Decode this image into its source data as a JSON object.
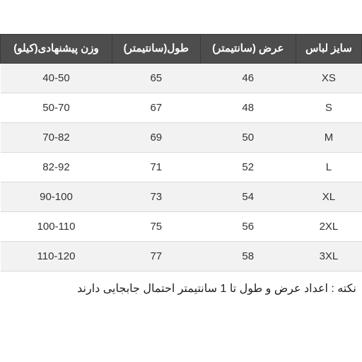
{
  "table": {
    "type": "table",
    "direction": "rtl",
    "header_bg": "#4d4d4d",
    "header_fg": "#ffffff",
    "row_even_bg": "#f2f2f2",
    "row_odd_bg": "#ffffff",
    "border_color": "#d9d9d9",
    "header_fontsize": 15,
    "cell_fontsize": 15,
    "columns": [
      {
        "label": "سایز لباس"
      },
      {
        "label": "عرض (سانتیمتر)"
      },
      {
        "label": "طول(سانتیمتر)"
      },
      {
        "label": "وزن پیشنهادی(کیلو)"
      }
    ],
    "rows": [
      {
        "size": "XS",
        "width": "46",
        "length": "65",
        "weight": "40-50"
      },
      {
        "size": "S",
        "width": "48",
        "length": "67",
        "weight": "50-70"
      },
      {
        "size": "M",
        "width": "50",
        "length": "69",
        "weight": "70-82"
      },
      {
        "size": "L",
        "width": "52",
        "length": "71",
        "weight": "82-92"
      },
      {
        "size": "XL",
        "width": "54",
        "length": "73",
        "weight": "90-100"
      },
      {
        "size": "2XL",
        "width": "56",
        "length": "75",
        "weight": "100-110"
      },
      {
        "size": "3XL",
        "width": "58",
        "length": "77",
        "weight": "110-120"
      }
    ]
  },
  "note": "نکته : اعداد عرض و طول تا 1 سانتیمتر احتمال جابجایی دارند"
}
